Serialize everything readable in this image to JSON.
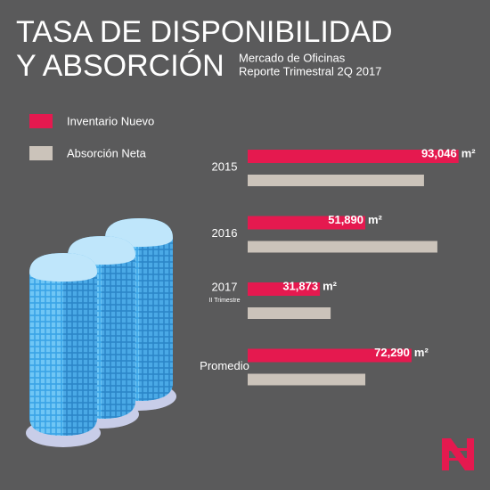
{
  "chart_data": {
    "type": "bar",
    "orientation": "horizontal",
    "title": [
      "TASA DE DISPONIBILIDAD",
      "Y ABSORCIÓN"
    ],
    "subtitle": [
      "Mercado de Oficinas",
      "Reporte Trimestral 2Q 2017"
    ],
    "categories": [
      "2015",
      "2016",
      "2017",
      "Promedio"
    ],
    "category_notes": [
      null,
      null,
      "II Trimestre",
      null
    ],
    "unit": "m²",
    "series": [
      {
        "name": "Inventario Nuevo",
        "color": "#e5194f",
        "values": [
          93046,
          51890,
          31873,
          72290
        ],
        "value_labels": [
          "93,046",
          "51,890",
          "31,873",
          "72,290"
        ]
      },
      {
        "name": "Absorción Neta",
        "color": "#cbc3ba",
        "values": [
          77800,
          83700,
          36600,
          51900
        ]
      }
    ]
  }
}
